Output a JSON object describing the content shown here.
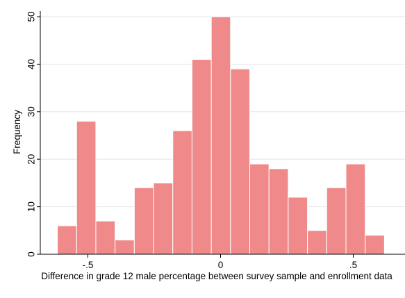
{
  "chart_data": {
    "type": "bar",
    "subtype": "histogram",
    "xlabel": "Difference in grade 12 male percentage between survey sample and enrollment data",
    "ylabel": "Frequency",
    "bin_width": 0.0725,
    "bin_start": -0.615,
    "values": [
      6,
      28,
      7,
      3,
      14,
      15,
      26,
      41,
      50,
      39,
      19,
      18,
      12,
      5,
      14,
      19,
      4
    ],
    "xticks": [
      {
        "value": -0.5,
        "label": "-.5"
      },
      {
        "value": 0,
        "label": "0"
      },
      {
        "value": 0.5,
        "label": ".5"
      }
    ],
    "yticks": [
      {
        "value": 0,
        "label": "0"
      },
      {
        "value": 10,
        "label": "10"
      },
      {
        "value": 20,
        "label": "20"
      },
      {
        "value": 30,
        "label": "30"
      },
      {
        "value": 40,
        "label": "40"
      },
      {
        "value": 50,
        "label": "50"
      }
    ],
    "xlim": [
      -0.6315,
      0.6315
    ],
    "ylim": [
      0,
      51
    ],
    "grid": "horizontal",
    "bar_fill": "#f08a8a",
    "bar_stroke": "#ffffff",
    "grid_color": "#e6e6e6"
  }
}
